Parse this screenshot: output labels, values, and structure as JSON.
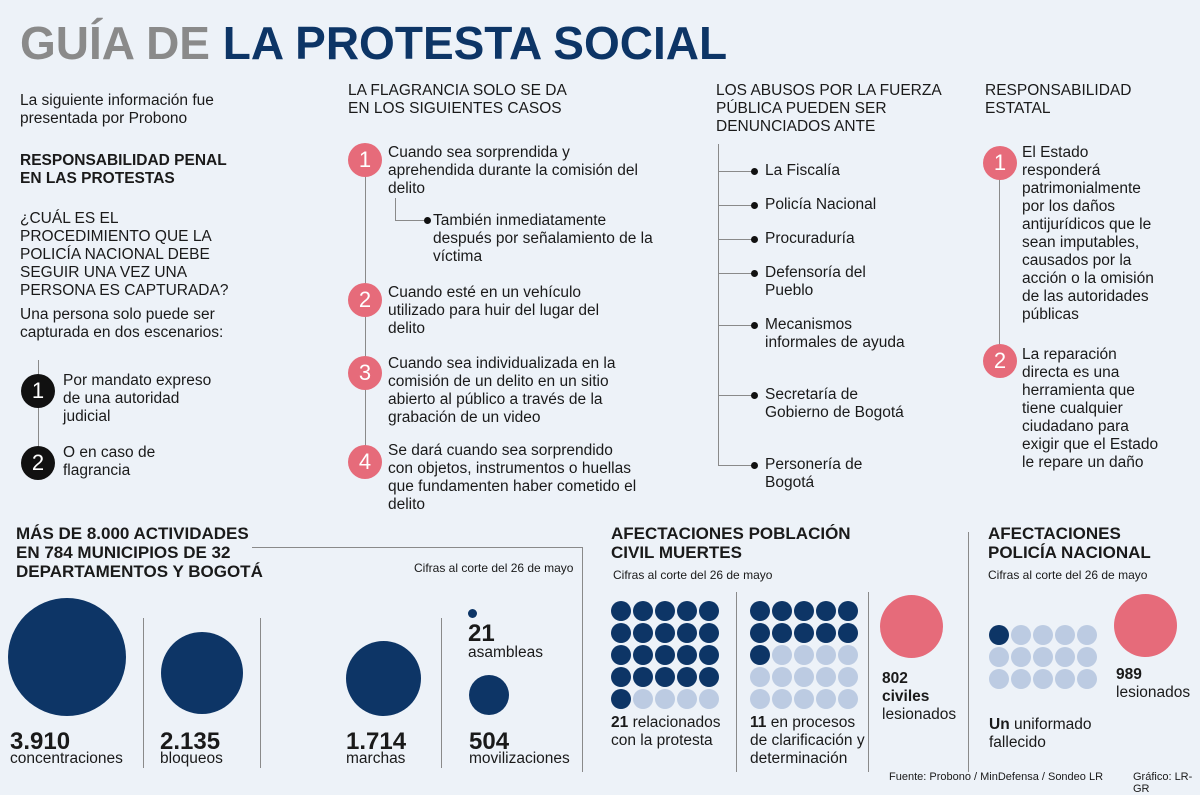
{
  "title": {
    "part1": "GUÍA DE",
    "part2": "LA PROTESTA SOCIAL"
  },
  "col1": {
    "intro": "La siguiente información fue presentada por Probono",
    "heading": "RESPONSABILIDAD PENAL EN LAS PROTESTAS",
    "question": "¿CUÁL ES EL PROCEDIMIENTO QUE LA POLICÍA NACIONAL DEBE SEGUIR UNA VEZ UNA PERSONA ES CAPTURADA?",
    "lead": "Una persona solo puede ser capturada en dos escenarios:",
    "items": [
      {
        "n": "1",
        "text": "Por mandato expreso de una autoridad judicial"
      },
      {
        "n": "2",
        "text": "O en caso de flagrancia"
      }
    ]
  },
  "col2": {
    "heading": "LA FLAGRANCIA SOLO SE DA EN LOS SIGUIENTES CASOS",
    "items": [
      {
        "n": "1",
        "text": "Cuando sea sorprendida y aprehendida durante la comisión del delito"
      },
      {
        "n": "2",
        "text": "Cuando esté en un vehículo utilizado para huir del lugar del delito"
      },
      {
        "n": "3",
        "text": "Cuando sea individualizada en la comisión de un delito en un sitio abierto al público a través de la grabación de un video"
      },
      {
        "n": "4",
        "text": "Se dará cuando sea sorprendido con objetos, instrumentos o huellas que fundamenten haber cometido el delito"
      }
    ],
    "sub": "También inmediatamente después por señalamiento de la víctima"
  },
  "col3": {
    "heading": "LOS ABUSOS POR LA FUERZA PÚBLICA PUEDEN SER DENUNCIADOS ANTE",
    "items": [
      "La Fiscalía",
      "Policía Nacional",
      "Procuraduría",
      "Defensoría del Pueblo",
      "Mecanismos informales de ayuda",
      "Secretaría de Gobierno de Bogotá",
      "Personería de Bogotá"
    ]
  },
  "col4": {
    "heading": "RESPONSABILIDAD ESTATAL",
    "items": [
      {
        "n": "1",
        "text": "El Estado responderá patrimonialmente por los daños antijurídicos que le sean imputables, causados por la acción o la omisión de las autoridades públicas"
      },
      {
        "n": "2",
        "text": "La reparación directa es una herramienta que tiene cualquier ciudadano para exigir que el Estado le repare un daño"
      }
    ]
  },
  "activities": {
    "heading": "MÁS DE 8.000 ACTIVIDADES EN 784 MUNICIPIOS DE 32 DEPARTAMENTOS Y BOGOTÁ",
    "note": "Cifras al corte del 26 de mayo",
    "items": [
      {
        "value": "3.910",
        "label": "concentraciones"
      },
      {
        "value": "2.135",
        "label": "bloqueos"
      },
      {
        "value": "1.714",
        "label": "marchas"
      },
      {
        "value": "21",
        "label": "asambleas"
      },
      {
        "value": "504",
        "label": "movilizaciones"
      }
    ]
  },
  "civil": {
    "heading": "AFECTACIONES POBLACIÓN CIVIL MUERTES",
    "note": "Cifras al corte del 26 de mayo",
    "a_num": "21",
    "a_text": "relacionados con la protesta",
    "b_num": "11",
    "b_text": "en procesos de clarificación y determinación",
    "inj_num": "802",
    "inj_word": "civiles",
    "inj_label": "lesionados"
  },
  "police": {
    "heading": "AFECTACIONES POLICÍA NACIONAL",
    "note": "Cifras al corte del 26 de mayo",
    "dead_num": "Un",
    "dead_text": "uniformado fallecido",
    "inj_num": "989",
    "inj_label": "lesionados"
  },
  "footer": {
    "source": "Fuente: Probono / MinDefensa / Sondeo LR",
    "credit": "Gráfico: LR-GR"
  },
  "colors": {
    "navy": "#0d3566",
    "pink": "#e66b7a",
    "light": "#bccbe2",
    "gray": "#8a8a8a"
  }
}
